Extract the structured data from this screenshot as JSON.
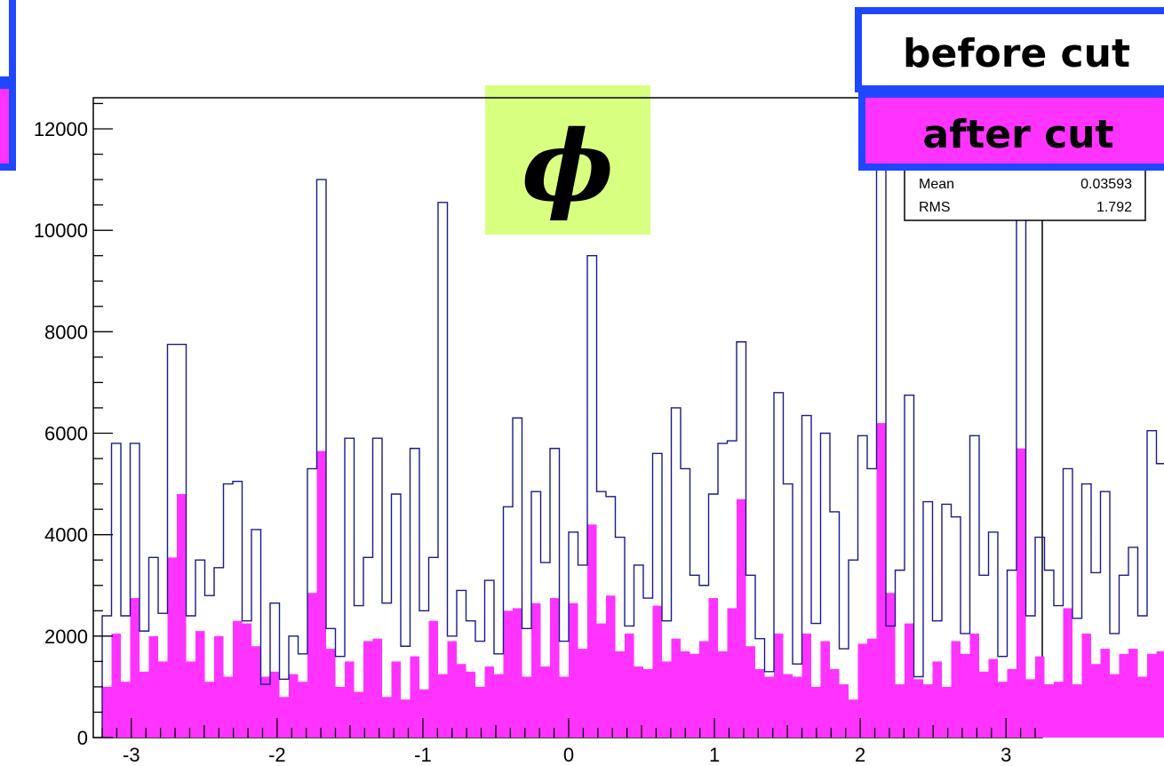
{
  "chart_data": {
    "type": "bar",
    "title": "ϕ",
    "xlim": [
      -3.2,
      3.2
    ],
    "ylim": [
      0,
      12600
    ],
    "x_ticks": [
      -3,
      -2,
      -1,
      0,
      1,
      2,
      3
    ],
    "y_ticks": [
      0,
      2000,
      4000,
      6000,
      8000,
      10000,
      12000
    ],
    "bin_width": 0.064,
    "series": [
      {
        "name": "before cut",
        "style": "outline",
        "color": "#1a1a8c",
        "values": [
          2400,
          5800,
          2400,
          5800,
          2100,
          3550,
          2450,
          7750,
          7750,
          2400,
          3500,
          2800,
          3350,
          5000,
          5050,
          2300,
          4100,
          1050,
          2650,
          1150,
          2000,
          1650,
          5300,
          11000,
          2150,
          1600,
          5900,
          2600,
          3550,
          5900,
          2650,
          4800,
          1800,
          5700,
          2500,
          3550,
          10550,
          2000,
          2900,
          2300,
          1900,
          3100,
          1650,
          4550,
          6300,
          2150,
          4850,
          3450,
          5700,
          1900,
          4050,
          3400,
          9500,
          4850,
          4750,
          3950,
          2200,
          3400,
          2750,
          5600,
          2300,
          6500,
          5300,
          3200,
          3000,
          4800,
          5800,
          5850,
          7800,
          3200,
          1950,
          1300,
          6800,
          5000,
          1450,
          6350,
          2250,
          6000,
          4450,
          1750,
          3500,
          5950,
          5300,
          12050,
          2200,
          3300,
          6750,
          1200,
          4650,
          2300,
          4600,
          4350,
          2050,
          5950,
          3200,
          4050,
          1600,
          3300,
          10650,
          2400,
          3950,
          3300,
          2600,
          5300,
          2350,
          5000,
          3250,
          4850,
          2050,
          3200,
          3750,
          2400,
          6050,
          5400,
          3250,
          3300,
          3700,
          2800,
          8450,
          6700,
          2400,
          2400,
          5650,
          5300,
          1850,
          5250,
          2000
        ],
        "values_bins": "127 bins of width 0.064 from -3.2 to 3.2"
      },
      {
        "name": "after cut",
        "style": "filled",
        "color": "#ff33ff",
        "values": [
          1000,
          2050,
          1100,
          2750,
          1300,
          2000,
          1500,
          3550,
          4800,
          1500,
          2100,
          1100,
          2000,
          1200,
          2300,
          2250,
          1800,
          1200,
          1300,
          800,
          1250,
          1100,
          2850,
          5650,
          1750,
          1000,
          1500,
          900,
          1900,
          1950,
          800,
          1500,
          750,
          1600,
          950,
          2300,
          1250,
          1900,
          1450,
          1300,
          1000,
          1400,
          1250,
          2500,
          2550,
          1200,
          2650,
          1400,
          2750,
          1200,
          2650,
          1750,
          4200,
          2250,
          2800,
          1700,
          2050,
          1400,
          1350,
          2600,
          1500,
          1950,
          1700,
          1650,
          1900,
          2750,
          1700,
          2550,
          4700,
          1800,
          1350,
          1200,
          2050,
          1250,
          1200,
          2050,
          1000,
          1900,
          1350,
          1050,
          750,
          1850,
          1950,
          6200,
          2850,
          1050,
          2250,
          1150,
          1050,
          1500,
          1000,
          1900,
          1650,
          2050,
          1300,
          1550,
          1100,
          1350,
          5700,
          1150,
          1600,
          1050,
          1100,
          2550,
          1050,
          2050,
          1450,
          1750,
          1250,
          1650,
          1750,
          1200,
          1650,
          1700,
          1650,
          1650,
          2350,
          1600,
          3900,
          4250,
          1550,
          2400,
          1300,
          1550,
          900,
          950,
          900
        ],
        "values_bins": "127 bins of width 0.064 from -3.2 to 3.2"
      }
    ]
  },
  "legend": {
    "before_label": "before cut",
    "after_label": "after cut"
  },
  "stats_box": {
    "mean_label": "Mean",
    "mean_value": "0.03593",
    "rms_label": "RMS",
    "rms_value": "1.792"
  },
  "colors": {
    "before_line": "#1a1a8c",
    "after_fill": "#ff33ff",
    "legend_border": "#1f47ff",
    "title_bg": "#d9ff80"
  }
}
